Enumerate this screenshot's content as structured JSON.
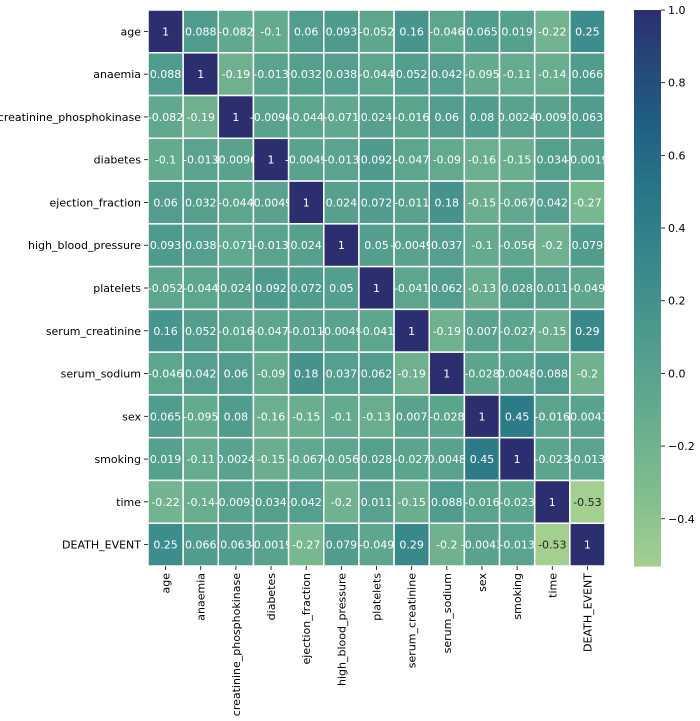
{
  "chart_data": {
    "type": "heatmap",
    "title": "",
    "xlabel": "",
    "ylabel": "",
    "labels": [
      "age",
      "anaemia",
      "creatinine_phosphokinase",
      "diabetes",
      "ejection_fraction",
      "high_blood_pressure",
      "platelets",
      "serum_creatinine",
      "serum_sodium",
      "sex",
      "smoking",
      "time",
      "DEATH_EVENT"
    ],
    "matrix": [
      [
        "1",
        "0.088",
        "-0.082",
        "-0.1",
        "0.06",
        "0.093",
        "-0.052",
        "0.16",
        "-0.046",
        "0.065",
        "0.019",
        "-0.22",
        "0.25"
      ],
      [
        "0.088",
        "1",
        "-0.19",
        "-0.013",
        "0.032",
        "0.038",
        "-0.044",
        "0.052",
        "0.042",
        "-0.095",
        "-0.11",
        "-0.14",
        "0.066"
      ],
      [
        "-0.082",
        "-0.19",
        "1",
        "-0.0096",
        "-0.044",
        "-0.071",
        "0.024",
        "-0.016",
        "0.06",
        "0.08",
        "0.0024",
        "-0.0093",
        "0.063"
      ],
      [
        "-0.1",
        "-0.013",
        "-0.0096",
        "1",
        "-0.0049",
        "-0.013",
        "0.092",
        "-0.047",
        "-0.09",
        "-0.16",
        "-0.15",
        "0.034",
        "-0.0019"
      ],
      [
        "0.06",
        "0.032",
        "-0.044",
        "-0.0049",
        "1",
        "0.024",
        "0.072",
        "-0.011",
        "0.18",
        "-0.15",
        "-0.067",
        "0.042",
        "-0.27"
      ],
      [
        "0.093",
        "0.038",
        "-0.071",
        "-0.013",
        "0.024",
        "1",
        "0.05",
        "-0.0049",
        "0.037",
        "-0.1",
        "-0.056",
        "-0.2",
        "0.079"
      ],
      [
        "-0.052",
        "-0.044",
        "0.024",
        "0.092",
        "0.072",
        "0.05",
        "1",
        "-0.041",
        "0.062",
        "-0.13",
        "0.028",
        "0.011",
        "-0.049"
      ],
      [
        "0.16",
        "0.052",
        "-0.016",
        "-0.047",
        "-0.011",
        "-0.0049",
        "-0.041",
        "1",
        "-0.19",
        "0.007",
        "-0.027",
        "-0.15",
        "0.29"
      ],
      [
        "-0.046",
        "0.042",
        "0.06",
        "-0.09",
        "0.18",
        "0.037",
        "0.062",
        "-0.19",
        "1",
        "-0.028",
        "0.0048",
        "0.088",
        "-0.2"
      ],
      [
        "0.065",
        "-0.095",
        "0.08",
        "-0.16",
        "-0.15",
        "-0.1",
        "-0.13",
        "0.007",
        "-0.028",
        "1",
        "0.45",
        "-0.016",
        "-0.0043"
      ],
      [
        "0.019",
        "-0.11",
        "0.0024",
        "-0.15",
        "-0.067",
        "-0.056",
        "0.028",
        "-0.027",
        "0.0048",
        "0.45",
        "1",
        "-0.023",
        "-0.013"
      ],
      [
        "-0.22",
        "-0.14",
        "-0.0093",
        "0.034",
        "0.042",
        "-0.2",
        "0.011",
        "-0.15",
        "0.088",
        "-0.016",
        "-0.023",
        "1",
        "-0.53"
      ],
      [
        "0.25",
        "0.066",
        "0.063",
        "-0.0019",
        "-0.27",
        "0.079",
        "-0.049",
        "0.29",
        "-0.2",
        "-0.0043",
        "-0.013",
        "-0.53",
        "1"
      ]
    ],
    "colormap": "crest",
    "colors": {
      "low": "#a3cf90",
      "high": "#2c2f6f"
    },
    "vmin": -0.53,
    "vmax": 1.0,
    "colorbar_ticks": [
      "1.0",
      "0.8",
      "0.6",
      "0.4",
      "0.2",
      "0.0",
      "−0.2",
      "−0.4"
    ],
    "colorbar_tick_values": [
      1.0,
      0.8,
      0.6,
      0.4,
      0.2,
      0.0,
      -0.2,
      -0.4
    ],
    "annotated": true,
    "grid": false,
    "legend": "colorbar-right"
  }
}
